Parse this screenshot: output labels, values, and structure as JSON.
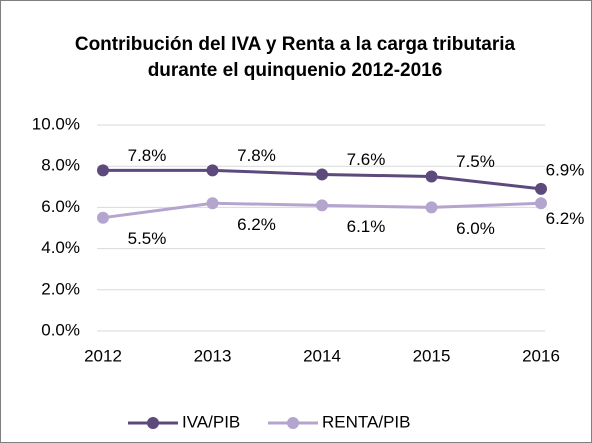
{
  "chart_data": {
    "type": "line",
    "title": "Contribución del IVA y Renta a la carga tributaria durante el quinquenio 2012-2016",
    "categories": [
      "2012",
      "2013",
      "2014",
      "2015",
      "2016"
    ],
    "series": [
      {
        "name": "IVA/PIB",
        "color": "#5c4a7c",
        "values": [
          7.8,
          7.8,
          7.6,
          7.5,
          6.9
        ],
        "value_labels": [
          "7.8%",
          "7.8%",
          "7.6%",
          "7.5%",
          "6.9%"
        ]
      },
      {
        "name": "RENTA/PIB",
        "color": "#b4a5cf",
        "values": [
          5.5,
          6.2,
          6.1,
          6.0,
          6.2
        ],
        "value_labels": [
          "5.5%",
          "6.2%",
          "6.1%",
          "6.0%",
          "6.2%"
        ]
      }
    ],
    "ylim": [
      0,
      10
    ],
    "yticks": [
      {
        "value": 0,
        "label": "0.0%"
      },
      {
        "value": 2,
        "label": "2.0%"
      },
      {
        "value": 4,
        "label": "4.0%"
      },
      {
        "value": 6,
        "label": "6.0%"
      },
      {
        "value": 8,
        "label": "8.0%"
      },
      {
        "value": 10,
        "label": "10.0%"
      }
    ],
    "grid": true,
    "legend": "bottom"
  }
}
